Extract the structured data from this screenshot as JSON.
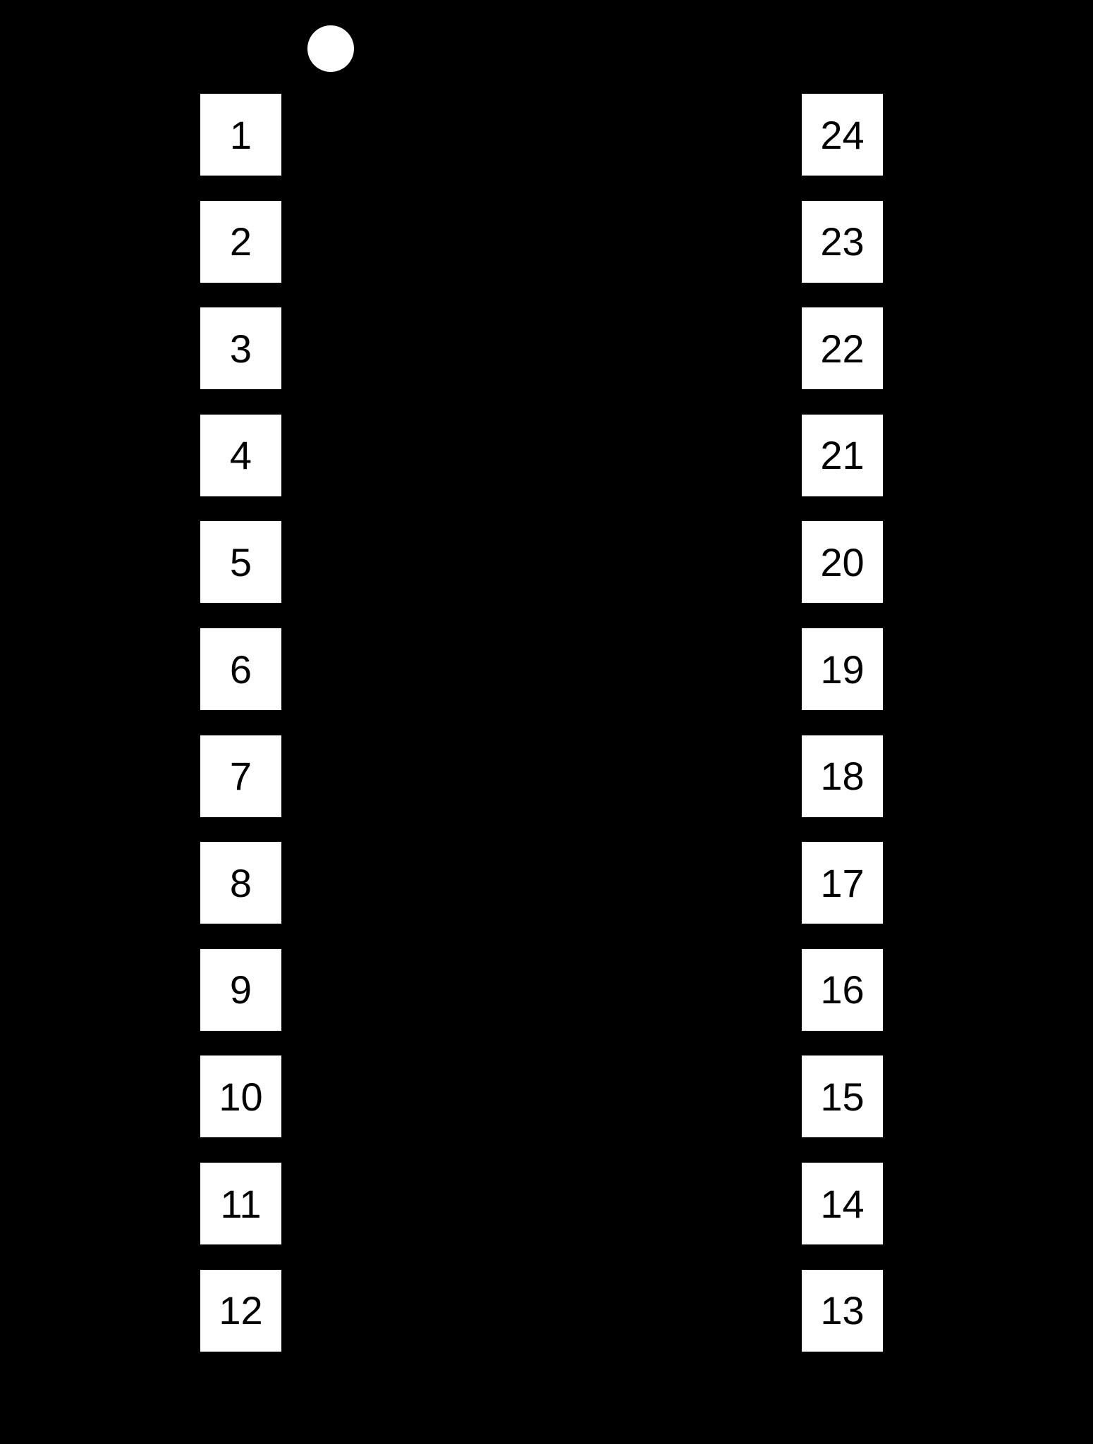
{
  "package": {
    "pin1_marker": "circle-dot",
    "left_pins": [
      "1",
      "2",
      "3",
      "4",
      "5",
      "6",
      "7",
      "8",
      "9",
      "10",
      "11",
      "12"
    ],
    "right_pins": [
      "24",
      "23",
      "22",
      "21",
      "20",
      "19",
      "18",
      "17",
      "16",
      "15",
      "14",
      "13"
    ],
    "colors": {
      "body": "#000000",
      "pad": "#ffffff",
      "label": "#000000"
    }
  }
}
